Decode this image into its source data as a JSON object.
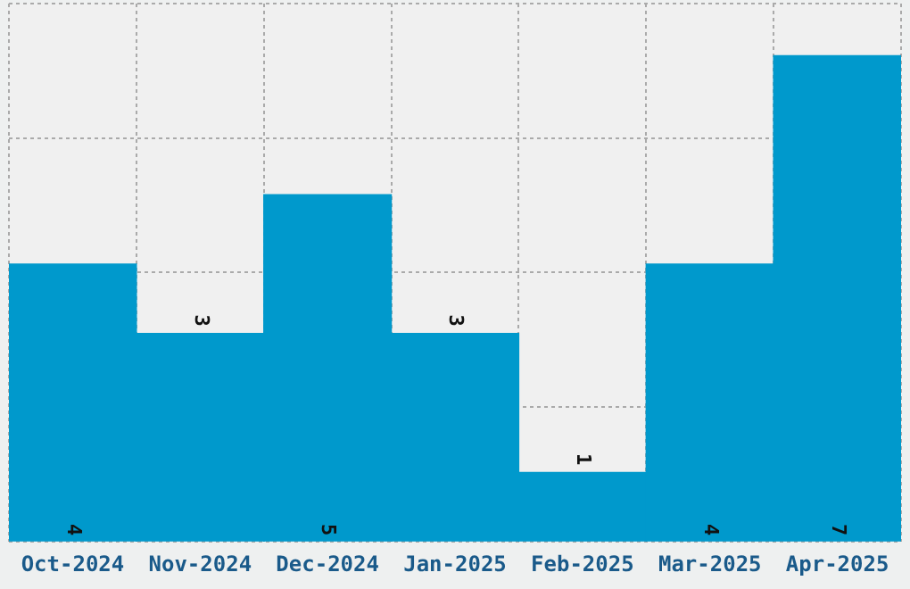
{
  "chart_data": {
    "type": "bar",
    "categories": [
      "Oct-2024",
      "Nov-2024",
      "Dec-2024",
      "Jan-2025",
      "Feb-2025",
      "Mar-2025",
      "Apr-2025"
    ],
    "values": [
      4,
      3,
      5,
      3,
      1,
      4,
      7
    ],
    "color": "#0099cc",
    "ylim": [
      0,
      7.75
    ],
    "yticks": [
      {
        "value": 0,
        "label": null
      },
      {
        "value": 1.94,
        "label": null
      },
      {
        "value": 3.88,
        "label": null
      },
      {
        "value": 5.81,
        "label": null
      },
      {
        "value": 7.75,
        "label": null
      }
    ],
    "tick_labels": "x",
    "grid": true,
    "data_labels": true,
    "legend": false
  }
}
